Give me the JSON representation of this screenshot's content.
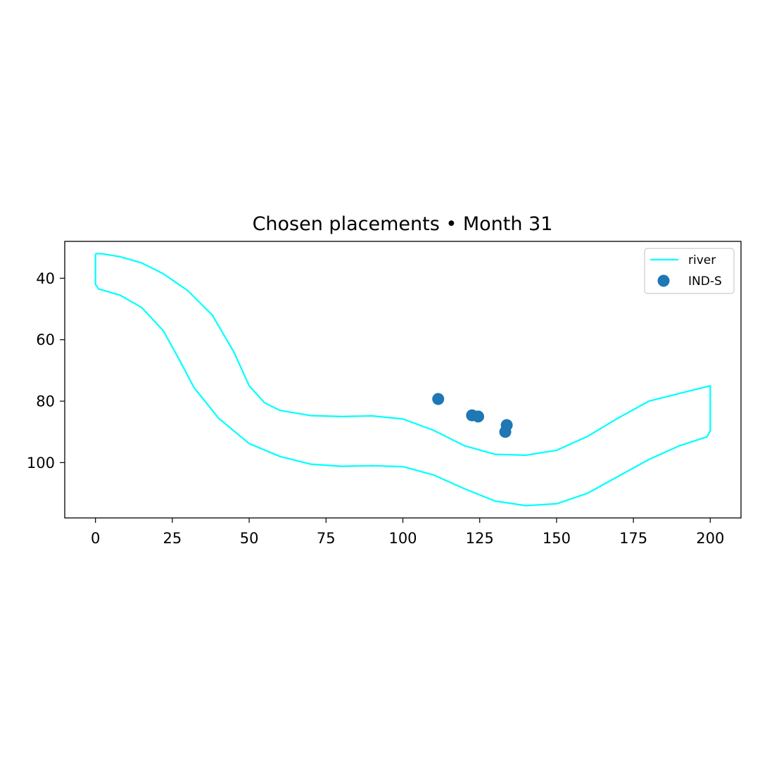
{
  "chart_data": {
    "type": "scatter",
    "title": "Chosen placements • Month 31",
    "xlabel": "",
    "ylabel": "",
    "xlim": [
      -10,
      210
    ],
    "ylim": [
      118,
      28
    ],
    "y_inverted": true,
    "grid": false,
    "legend_placement": "top-right",
    "x_ticks": [
      0,
      25,
      50,
      75,
      100,
      125,
      150,
      175,
      200
    ],
    "y_ticks": [
      40,
      60,
      80,
      100
    ],
    "series": [
      {
        "name": "river",
        "kind": "line",
        "color": "#00ffff",
        "x": [
          0,
          2,
          8,
          15,
          22,
          30,
          38,
          45,
          50,
          55,
          60,
          70,
          80,
          90,
          100,
          110,
          120,
          130,
          140,
          150,
          160,
          170,
          180,
          190,
          200,
          200,
          199,
          190,
          180,
          170,
          160,
          150,
          140,
          130,
          120,
          110,
          100,
          90,
          80,
          70,
          60,
          50,
          40,
          32,
          27,
          22,
          15,
          8,
          1,
          0,
          0
        ],
        "y": [
          32,
          32,
          33,
          35,
          38.5,
          44,
          52,
          64,
          75,
          80.5,
          83,
          84.7,
          85,
          84.8,
          85.8,
          89.5,
          94.5,
          97.3,
          97.6,
          96,
          91.5,
          85.5,
          80,
          77.5,
          75,
          89.5,
          91.6,
          94.5,
          99,
          104.5,
          110,
          113.4,
          114,
          112.5,
          108.5,
          104,
          101.3,
          101,
          101.2,
          100.5,
          98,
          93.8,
          85.5,
          75.5,
          66,
          57,
          49.5,
          45.5,
          43.5,
          42,
          32
        ]
      },
      {
        "name": "IND-S",
        "kind": "scatter",
        "color": "#1f77b4",
        "x": [
          111.5,
          122.5,
          124.5,
          133.8,
          133.3
        ],
        "y": [
          79.3,
          84.6,
          85,
          87.8,
          90
        ]
      }
    ]
  }
}
